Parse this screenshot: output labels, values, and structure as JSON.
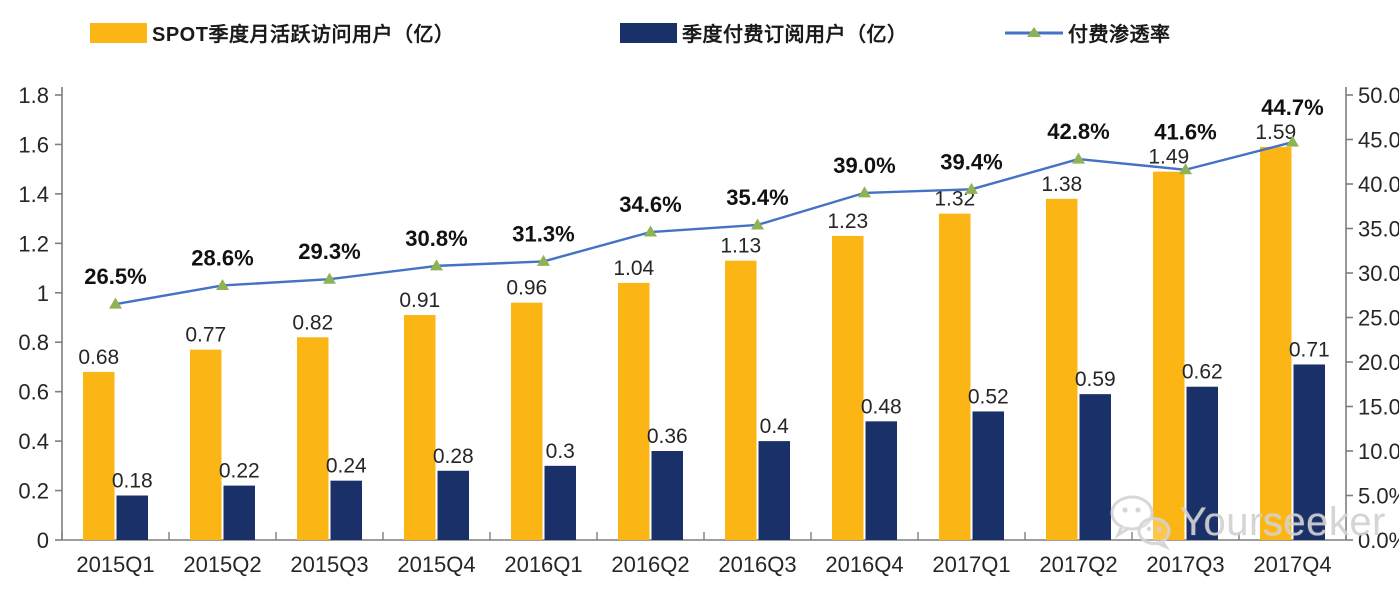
{
  "legend": {
    "items": [
      {
        "id": "mau",
        "label": "SPOT季度月活跃访问用户（亿）",
        "color": "#FBB616",
        "type": "bar-swatch"
      },
      {
        "id": "subs",
        "label": "季度付费订阅用户（亿）",
        "color": "#1A3068",
        "type": "bar-swatch"
      },
      {
        "id": "penetration",
        "label": "付费渗透率",
        "line_color": "#4472C4",
        "marker_color": "#8FB254",
        "type": "line-marker"
      }
    ]
  },
  "watermark": {
    "label": "Yourseeker",
    "icon": "wechat-icon"
  },
  "chart_data": {
    "type": "bar",
    "subtype": "grouped-bars-with-line",
    "title": "",
    "categories": [
      "2015Q1",
      "2015Q2",
      "2015Q3",
      "2015Q4",
      "2016Q1",
      "2016Q2",
      "2016Q3",
      "2016Q4",
      "2017Q1",
      "2017Q2",
      "2017Q3",
      "2017Q4"
    ],
    "series": [
      {
        "name": "SPOT季度月活跃访问用户（亿）",
        "type": "bar",
        "axis": "left",
        "color": "#FBB616",
        "values": [
          0.68,
          0.77,
          0.82,
          0.91,
          0.96,
          1.04,
          1.13,
          1.23,
          1.32,
          1.38,
          1.49,
          1.59
        ],
        "labels": [
          "0.68",
          "0.77",
          "0.82",
          "0.91",
          "0.96",
          "1.04",
          "1.13",
          "1.23",
          "1.32",
          "1.38",
          "1.49",
          "1.59"
        ]
      },
      {
        "name": "季度付费订阅用户（亿）",
        "type": "bar",
        "axis": "left",
        "color": "#1A3068",
        "values": [
          0.18,
          0.22,
          0.24,
          0.28,
          0.3,
          0.36,
          0.4,
          0.48,
          0.52,
          0.59,
          0.62,
          0.71
        ],
        "labels": [
          "0.18",
          "0.22",
          "0.24",
          "0.28",
          "0.3",
          "0.36",
          "0.4",
          "0.48",
          "0.52",
          "0.59",
          "0.62",
          "0.71"
        ]
      },
      {
        "name": "付费渗透率",
        "type": "line",
        "axis": "right",
        "color": "#4472C4",
        "marker_color": "#8FB254",
        "marker": "triangle",
        "values": [
          26.5,
          28.6,
          29.3,
          30.8,
          31.3,
          34.6,
          35.4,
          39.0,
          39.4,
          42.8,
          41.6,
          44.7
        ],
        "labels": [
          "26.5%",
          "28.6%",
          "29.3%",
          "30.8%",
          "31.3%",
          "34.6%",
          "35.4%",
          "39.0%",
          "39.4%",
          "42.8%",
          "41.6%",
          "44.7%"
        ]
      }
    ],
    "left_axis": {
      "min": 0,
      "max": 1.8,
      "step": 0.2,
      "tick_labels": [
        "0",
        "0.2",
        "0.4",
        "0.6",
        "0.8",
        "1",
        "1.2",
        "1.4",
        "1.6",
        "1.8"
      ]
    },
    "right_axis": {
      "min": 0,
      "max": 50,
      "step": 5,
      "tick_labels": [
        "0.0%",
        "5.0%",
        "10.0%",
        "15.0%",
        "20.0%",
        "25.0%",
        "30.0%",
        "35.0%",
        "40.0%",
        "45.0%",
        "50.0%"
      ],
      "position": "right"
    },
    "grid": false,
    "legend_position": "top"
  }
}
